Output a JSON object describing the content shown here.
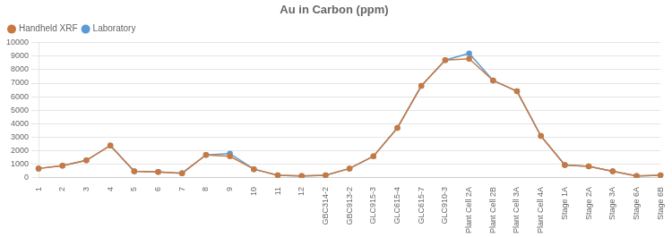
{
  "chart_data": {
    "type": "line",
    "title": "Au in Carbon (ppm)",
    "categories": [
      "1",
      "2",
      "3",
      "4",
      "5",
      "6",
      "7",
      "8",
      "9",
      "10",
      "11",
      "12",
      "GBC314-2",
      "GBC913-2",
      "GLC915-3",
      "GLC615-4",
      "GLC615-7",
      "GLC910-3",
      "Plant Cell 2A",
      "Plant Cell 2B",
      "Plant Cell 3A",
      "Plant Cell 4A",
      "Stage 1A",
      "Stage 2A",
      "Stage 3A",
      "Stage 6A",
      "Stage 6B"
    ],
    "series": [
      {
        "name": "Handheld XRF",
        "color": "#C87941",
        "marker": "circle",
        "values": [
          700,
          900,
          1300,
          2400,
          500,
          450,
          350,
          1700,
          1600,
          650,
          200,
          150,
          200,
          700,
          1600,
          3700,
          6800,
          8700,
          8800,
          7200,
          6400,
          3100,
          950,
          850,
          500,
          150,
          200
        ]
      },
      {
        "name": "Laboratory",
        "color": "#5B9BD5",
        "marker": "circle",
        "values": [
          700,
          900,
          1300,
          2400,
          500,
          450,
          350,
          1700,
          1800,
          650,
          200,
          150,
          200,
          700,
          1600,
          3700,
          6800,
          8700,
          9200,
          7200,
          6400,
          3100,
          950,
          850,
          500,
          150,
          200
        ]
      }
    ],
    "ylim": [
      0,
      10000
    ],
    "yticks": [
      0,
      1000,
      2000,
      3000,
      4000,
      5000,
      6000,
      7000,
      8000,
      9000,
      10000
    ],
    "grid": true,
    "legend": "upper left"
  }
}
